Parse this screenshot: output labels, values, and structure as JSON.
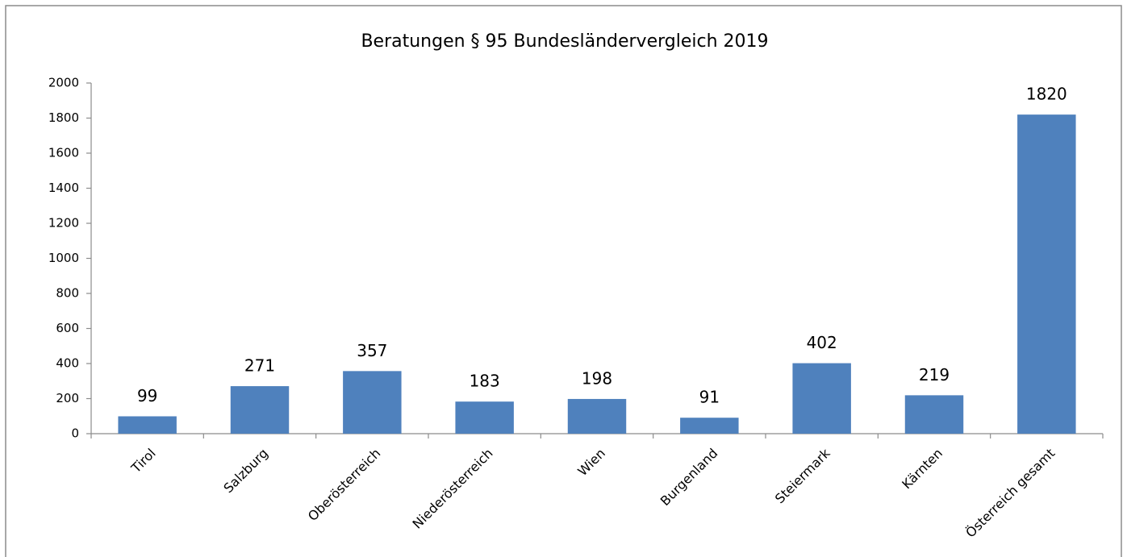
{
  "chart_data": {
    "type": "bar",
    "title": "Beratungen § 95 Bundesländervergleich 2019",
    "categories": [
      "Tirol",
      "Salzburg",
      "Oberösterreich",
      "Niederösterreich",
      "Wien",
      "Burgenland",
      "Steiermark",
      "Kärnten",
      "Österreich gesamt"
    ],
    "values": [
      99,
      271,
      357,
      183,
      198,
      91,
      402,
      219,
      1820
    ],
    "color": "#4f81bd",
    "ylim": [
      0,
      2000
    ],
    "yticks": [
      0,
      200,
      400,
      600,
      800,
      1000,
      1200,
      1400,
      1600,
      1800,
      2000
    ],
    "grid": false
  }
}
